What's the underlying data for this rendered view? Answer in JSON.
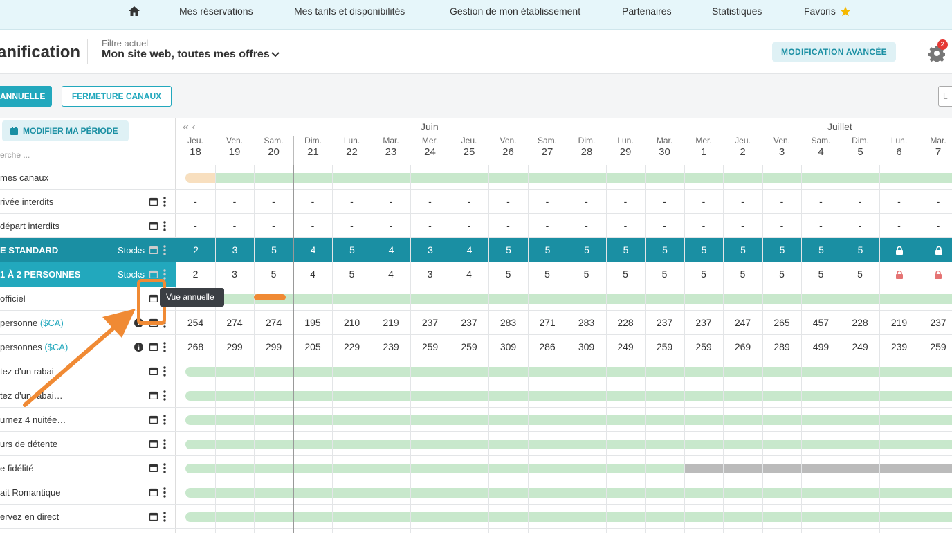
{
  "nav": {
    "items": [
      "Mes réservations",
      "Mes tarifs et disponibilités",
      "Gestion de mon établissement",
      "Partenaires",
      "Statistiques",
      "Favoris"
    ]
  },
  "header": {
    "title": "anification",
    "filter_label": "Filtre actuel",
    "filter_value": "Mon site web, toutes mes offres",
    "advanced_button": "MODIFICATION AVANCÉE",
    "notifications": "2"
  },
  "toolbar": {
    "annual_button": "ANNUELLE",
    "close_channels_button": "FERMETURE CANAUX",
    "right_button": "L"
  },
  "calendar": {
    "period_button": "MODIFIER MA PÉRIODE",
    "search_placeholder": "erche ...",
    "months": [
      "Juin",
      "Juillet"
    ],
    "days": [
      {
        "n": "Jeu.",
        "d": "18"
      },
      {
        "n": "Ven.",
        "d": "19"
      },
      {
        "n": "Sam.",
        "d": "20"
      },
      {
        "n": "Dim.",
        "d": "21"
      },
      {
        "n": "Lun.",
        "d": "22"
      },
      {
        "n": "Mar.",
        "d": "23"
      },
      {
        "n": "Mer.",
        "d": "24"
      },
      {
        "n": "Jeu.",
        "d": "25"
      },
      {
        "n": "Ven.",
        "d": "26"
      },
      {
        "n": "Sam.",
        "d": "27"
      },
      {
        "n": "Dim.",
        "d": "28"
      },
      {
        "n": "Lun.",
        "d": "29"
      },
      {
        "n": "Mar.",
        "d": "30"
      },
      {
        "n": "Mer.",
        "d": "1"
      },
      {
        "n": "Jeu.",
        "d": "2"
      },
      {
        "n": "Ven.",
        "d": "3"
      },
      {
        "n": "Sam.",
        "d": "4"
      },
      {
        "n": "Dim.",
        "d": "5"
      },
      {
        "n": "Lun.",
        "d": "6"
      },
      {
        "n": "Mar.",
        "d": "7"
      }
    ]
  },
  "rows": {
    "channels": "mes canaux",
    "arrival_forbidden": "rivée interdits",
    "departure_forbidden": "départ interdits",
    "dash": "-",
    "standard": "E STANDARD",
    "stocks": "Stocks",
    "standard_stocks": [
      "2",
      "3",
      "5",
      "4",
      "5",
      "4",
      "3",
      "4",
      "5",
      "5",
      "5",
      "5",
      "5",
      "5",
      "5",
      "5",
      "5",
      "5",
      "lock",
      "lock"
    ],
    "persons": "1 À 2 PERSONNES",
    "persons_stocks": [
      "2",
      "3",
      "5",
      "4",
      "5",
      "4",
      "3",
      "4",
      "5",
      "5",
      "5",
      "5",
      "5",
      "5",
      "5",
      "5",
      "5",
      "5",
      "lock",
      "lock"
    ],
    "official": " officiel",
    "one_person": "personne ",
    "one_person_ca": "($CA)",
    "one_person_prices": [
      "254",
      "274",
      "274",
      "195",
      "210",
      "219",
      "237",
      "237",
      "283",
      "271",
      "283",
      "228",
      "237",
      "237",
      "247",
      "265",
      "457",
      "228",
      "219",
      "237"
    ],
    "two_persons": "personnes ",
    "two_persons_ca": "($CA)",
    "two_persons_prices": [
      "268",
      "299",
      "299",
      "205",
      "229",
      "239",
      "259",
      "259",
      "309",
      "286",
      "309",
      "249",
      "259",
      "259",
      "269",
      "289",
      "499",
      "249",
      "239",
      "259"
    ],
    "offers": [
      "tez d'un rabai",
      "tez d'un rabai…",
      "urnez 4 nuitée…",
      "urs de détente",
      "e fidélité",
      "ait Romantique",
      "ervez en direct"
    ]
  },
  "tooltip": "Vue annuelle",
  "colors": {
    "teal": "#1a8fa3",
    "light_teal": "#22a8bd",
    "green_bar": "#c8e8cc",
    "orange": "#f08a34",
    "gray_bar": "#bbbbbb"
  }
}
